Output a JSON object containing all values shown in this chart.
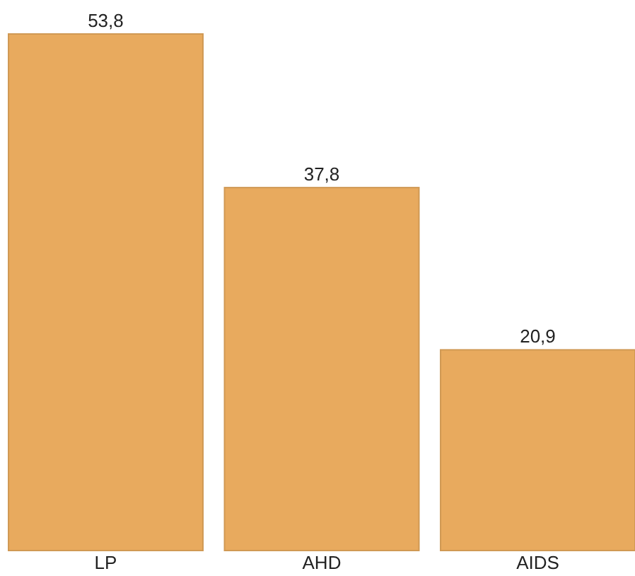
{
  "chart_data": {
    "type": "bar",
    "categories": [
      "LP",
      "AHD",
      "AIDS"
    ],
    "values": [
      53.8,
      37.8,
      20.9
    ],
    "value_labels": [
      "53,8",
      "37,8",
      "20,9"
    ],
    "color": "#e8aa5e"
  }
}
